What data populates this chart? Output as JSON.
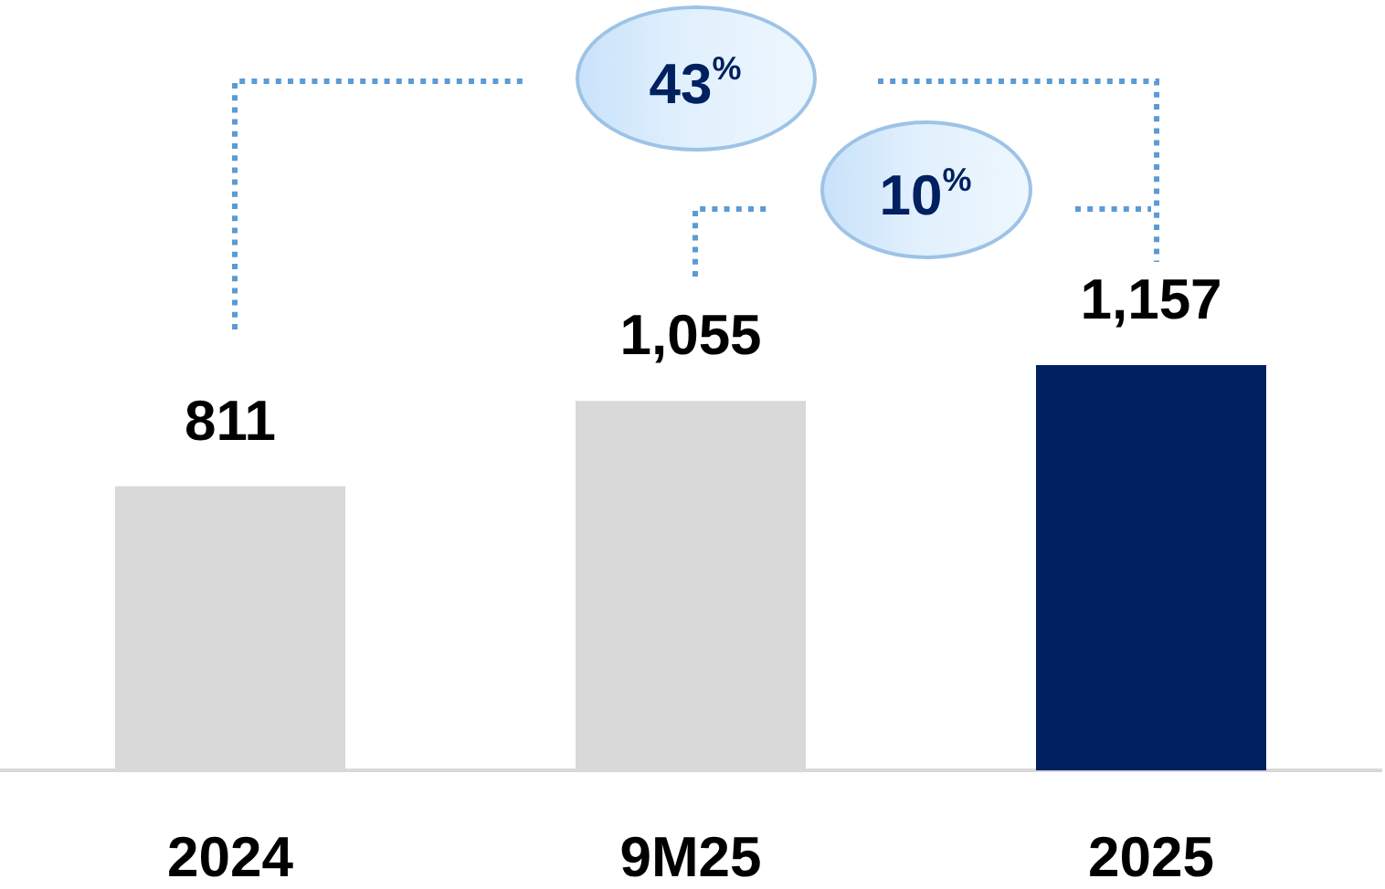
{
  "chart_data": {
    "type": "bar",
    "categories": [
      "2024",
      "9M25",
      "2025"
    ],
    "values": [
      811,
      1055,
      1157
    ],
    "colors": [
      "#d9d9d9",
      "#d9d9d9",
      "#002060"
    ],
    "value_labels": [
      "811",
      "1,055",
      "1,157"
    ],
    "annotations": [
      "43$^{%}$",
      "10$^{%}$"
    ],
    "tick_labels": "x"
  }
}
